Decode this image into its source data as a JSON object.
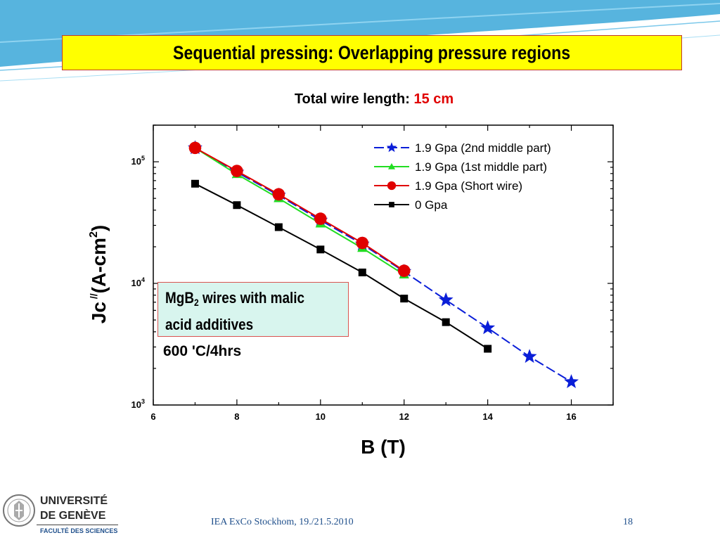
{
  "slide": {
    "title": "Sequential pressing: Overlapping pressure regions",
    "subtitle_label": "Total wire length:",
    "subtitle_value": "15 cm",
    "note_text_prefix": "MgB",
    "note_text_sub": "2",
    "note_text_rest": " wires with malic",
    "note_text_line2": "acid additives",
    "temperature_note": "600 'C/4hrs",
    "footer": "IEA ExCo Stockhom, 19./21.5.2010",
    "page_number": "18",
    "logo": {
      "line1": "UNIVERSITÉ",
      "line2": "DE GENÈVE",
      "line3": "FACULTÉ DES SCIENCES"
    },
    "colors": {
      "title_background": "#ffff00",
      "accent_red": "#e00000",
      "note_background": "#d8f5ee",
      "footer_blue": "#1f4f8b"
    }
  },
  "chart_data": {
    "type": "scatter",
    "title": "",
    "xlabel": "B (T)",
    "ylabel_main": "Jc",
    "ylabel_sup": "//",
    "ylabel_unit": "(A-cm",
    "ylabel_unit_sup": "2",
    "ylabel_close": ")",
    "xlim": [
      6,
      17
    ],
    "ylim": [
      1000,
      200000
    ],
    "yscale": "log",
    "x_ticks": [
      6,
      8,
      10,
      12,
      14,
      16
    ],
    "x_tick_labels": [
      "6",
      "8",
      "10",
      "12",
      "14",
      "16"
    ],
    "y_ticks": [
      1000,
      10000,
      100000
    ],
    "y_tick_labels": [
      {
        "base": "10",
        "exp": "3"
      },
      {
        "base": "10",
        "exp": "4"
      },
      {
        "base": "10",
        "exp": "5"
      }
    ],
    "grid": false,
    "legend_position": "top-right",
    "series": [
      {
        "name": "1.9 Gpa (2nd middle part)",
        "color": "#0a1ed8",
        "marker": "star",
        "dashed": true,
        "x": [
          7,
          8,
          9,
          10,
          11,
          12,
          13,
          14,
          15,
          16
        ],
        "y": [
          130000,
          82000,
          53000,
          33000,
          21000,
          12500,
          7300,
          4300,
          2500,
          1550
        ]
      },
      {
        "name": "1.9 Gpa (1st middle part)",
        "color": "#22dd22",
        "marker": "triangle",
        "dashed": false,
        "x": [
          7,
          8,
          9,
          10,
          11,
          12
        ],
        "y": [
          130000,
          79000,
          50000,
          31000,
          19500,
          11800
        ]
      },
      {
        "name": "1.9 Gpa (Short wire)",
        "color": "#e00000",
        "marker": "circle",
        "dashed": false,
        "x": [
          7,
          8,
          9,
          10,
          11,
          12
        ],
        "y": [
          130000,
          84000,
          54000,
          34000,
          21500,
          12700
        ]
      },
      {
        "name": "0 Gpa",
        "color": "#000000",
        "marker": "square",
        "dashed": false,
        "x": [
          7,
          8,
          9,
          10,
          11,
          12,
          13,
          14
        ],
        "y": [
          66000,
          44000,
          29000,
          19000,
          12300,
          7500,
          4800,
          2900
        ]
      }
    ]
  }
}
